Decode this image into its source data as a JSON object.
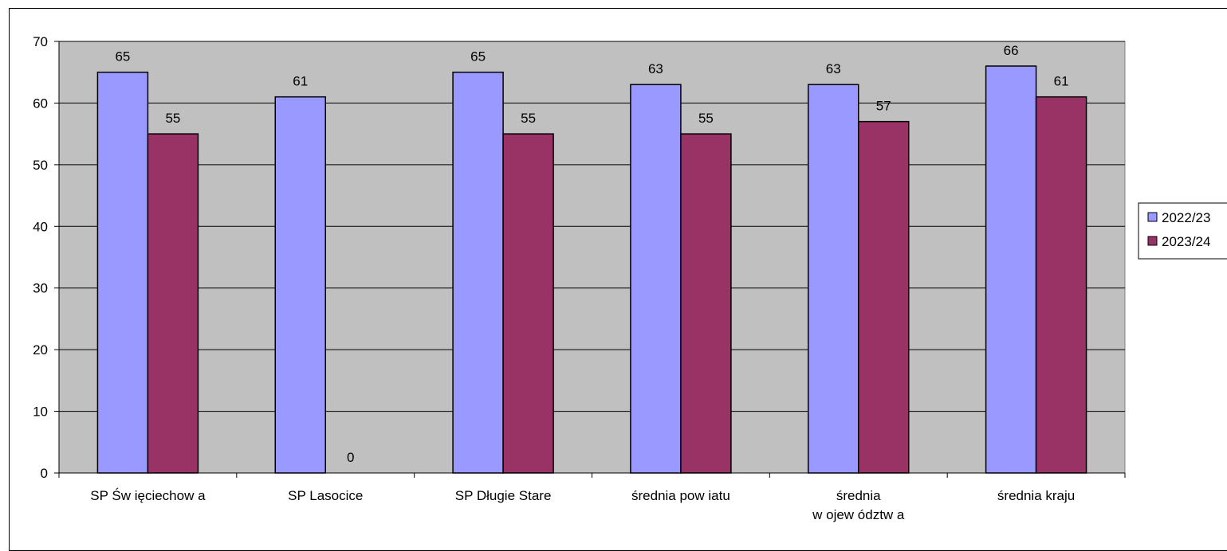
{
  "chart_data": {
    "type": "bar",
    "categories": [
      [
        "SP Św ięciechow a"
      ],
      [
        "SP Lasocice"
      ],
      [
        "SP Długie Stare"
      ],
      [
        "średnia pow iatu"
      ],
      [
        "średnia",
        "w ojew ództw a"
      ],
      [
        "średnia kraju"
      ]
    ],
    "series": [
      {
        "name": "2022/23",
        "values": [
          65,
          61,
          65,
          63,
          63,
          66
        ],
        "labels": [
          "65",
          "61",
          "65",
          "63",
          "63",
          "66"
        ]
      },
      {
        "name": "2023/24",
        "values": [
          55,
          0,
          55,
          55,
          57,
          61
        ],
        "labels": [
          "55",
          "0",
          "55",
          "55",
          "57",
          "61"
        ]
      }
    ],
    "ylim": [
      0,
      70
    ],
    "yticks": [
      0,
      10,
      20,
      30,
      40,
      50,
      60,
      70
    ],
    "grid": true,
    "legend": "right"
  },
  "colors": {
    "plot_background": "#c0c0c0",
    "series_2022_23": "#9999ff",
    "series_2023_24": "#993366"
  }
}
